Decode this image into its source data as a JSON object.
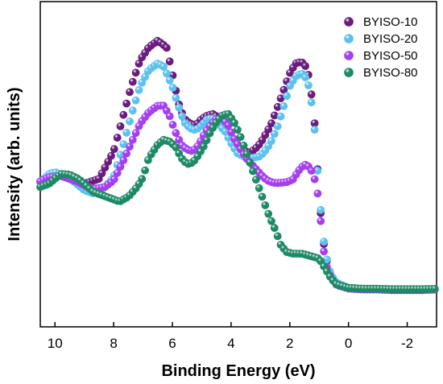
{
  "chart_data": {
    "type": "scatter",
    "xlabel": "Binding Energy (eV)",
    "ylabel": "Intensity (arb. units)",
    "xlim": [
      10.5,
      -3.0
    ],
    "ylim": [
      0,
      1.0
    ],
    "x_reversed": true,
    "y_ticks_shown": false,
    "grid": false,
    "legend_position": "top-right",
    "x_ticks": [
      10,
      8,
      6,
      4,
      2,
      0,
      -2
    ],
    "x_tick_labels": [
      "10",
      "8",
      "6",
      "4",
      "2",
      "0",
      "-2"
    ],
    "series": [
      {
        "name": "BYISO-10",
        "color": "#6a1b7e",
        "points": [
          [
            10.5,
            0.447
          ],
          [
            10.0,
            0.47
          ],
          [
            9.5,
            0.455
          ],
          [
            9.0,
            0.44
          ],
          [
            8.5,
            0.455
          ],
          [
            8.0,
            0.54
          ],
          [
            7.7,
            0.64
          ],
          [
            7.4,
            0.74
          ],
          [
            7.1,
            0.82
          ],
          [
            6.8,
            0.86
          ],
          [
            6.5,
            0.88
          ],
          [
            6.2,
            0.86
          ],
          [
            6.0,
            0.78
          ],
          [
            5.8,
            0.69
          ],
          [
            5.6,
            0.64
          ],
          [
            5.4,
            0.625
          ],
          [
            5.2,
            0.62
          ],
          [
            5.0,
            0.64
          ],
          [
            4.8,
            0.65
          ],
          [
            4.6,
            0.655
          ],
          [
            4.4,
            0.64
          ],
          [
            4.2,
            0.62
          ],
          [
            4.0,
            0.58
          ],
          [
            3.8,
            0.555
          ],
          [
            3.6,
            0.545
          ],
          [
            3.4,
            0.535
          ],
          [
            3.2,
            0.545
          ],
          [
            3.0,
            0.565
          ],
          [
            2.8,
            0.595
          ],
          [
            2.6,
            0.63
          ],
          [
            2.4,
            0.68
          ],
          [
            2.2,
            0.73
          ],
          [
            2.0,
            0.78
          ],
          [
            1.8,
            0.81
          ],
          [
            1.6,
            0.815
          ],
          [
            1.4,
            0.795
          ],
          [
            1.2,
            0.68
          ],
          [
            1.1,
            0.56
          ],
          [
            1.0,
            0.41
          ],
          [
            0.9,
            0.3
          ],
          [
            0.8,
            0.225
          ],
          [
            0.6,
            0.155
          ],
          [
            0.4,
            0.135
          ],
          [
            0.0,
            0.118
          ],
          [
            -0.5,
            0.115
          ],
          [
            -1.0,
            0.115
          ],
          [
            -1.5,
            0.113
          ],
          [
            -2.0,
            0.113
          ],
          [
            -2.5,
            0.113
          ],
          [
            -3.0,
            0.115
          ]
        ]
      },
      {
        "name": "BYISO-20",
        "color": "#5bc2ef",
        "points": [
          [
            10.5,
            0.445
          ],
          [
            10.2,
            0.47
          ],
          [
            10.0,
            0.476
          ],
          [
            9.7,
            0.465
          ],
          [
            9.4,
            0.45
          ],
          [
            9.0,
            0.42
          ],
          [
            8.7,
            0.41
          ],
          [
            8.4,
            0.42
          ],
          [
            8.0,
            0.46
          ],
          [
            7.7,
            0.55
          ],
          [
            7.4,
            0.65
          ],
          [
            7.1,
            0.74
          ],
          [
            6.8,
            0.79
          ],
          [
            6.5,
            0.81
          ],
          [
            6.3,
            0.8
          ],
          [
            6.0,
            0.74
          ],
          [
            5.8,
            0.68
          ],
          [
            5.6,
            0.63
          ],
          [
            5.4,
            0.61
          ],
          [
            5.2,
            0.605
          ],
          [
            5.0,
            0.62
          ],
          [
            4.8,
            0.64
          ],
          [
            4.6,
            0.64
          ],
          [
            4.4,
            0.62
          ],
          [
            4.2,
            0.6
          ],
          [
            4.0,
            0.565
          ],
          [
            3.8,
            0.535
          ],
          [
            3.6,
            0.525
          ],
          [
            3.4,
            0.52
          ],
          [
            3.2,
            0.52
          ],
          [
            3.0,
            0.525
          ],
          [
            2.8,
            0.545
          ],
          [
            2.6,
            0.575
          ],
          [
            2.4,
            0.62
          ],
          [
            2.2,
            0.68
          ],
          [
            2.0,
            0.74
          ],
          [
            1.8,
            0.77
          ],
          [
            1.6,
            0.78
          ],
          [
            1.4,
            0.76
          ],
          [
            1.2,
            0.66
          ],
          [
            1.1,
            0.54
          ],
          [
            1.0,
            0.42
          ],
          [
            0.9,
            0.31
          ],
          [
            0.8,
            0.23
          ],
          [
            0.6,
            0.16
          ],
          [
            0.4,
            0.135
          ],
          [
            0.0,
            0.12
          ],
          [
            -0.5,
            0.117
          ],
          [
            -1.0,
            0.117
          ],
          [
            -1.5,
            0.115
          ],
          [
            -2.0,
            0.115
          ],
          [
            -2.5,
            0.115
          ],
          [
            -3.0,
            0.116
          ]
        ]
      },
      {
        "name": "BYISO-50",
        "color": "#a53ef0",
        "points": [
          [
            10.5,
            0.447
          ],
          [
            10.2,
            0.46
          ],
          [
            9.8,
            0.465
          ],
          [
            9.5,
            0.455
          ],
          [
            9.2,
            0.445
          ],
          [
            8.9,
            0.43
          ],
          [
            8.6,
            0.425
          ],
          [
            8.3,
            0.43
          ],
          [
            8.0,
            0.45
          ],
          [
            7.7,
            0.505
          ],
          [
            7.4,
            0.565
          ],
          [
            7.1,
            0.625
          ],
          [
            6.8,
            0.66
          ],
          [
            6.5,
            0.68
          ],
          [
            6.3,
            0.68
          ],
          [
            6.1,
            0.65
          ],
          [
            5.9,
            0.6
          ],
          [
            5.7,
            0.56
          ],
          [
            5.5,
            0.545
          ],
          [
            5.3,
            0.54
          ],
          [
            5.1,
            0.56
          ],
          [
            4.9,
            0.595
          ],
          [
            4.7,
            0.62
          ],
          [
            4.5,
            0.64
          ],
          [
            4.3,
            0.64
          ],
          [
            4.1,
            0.62
          ],
          [
            3.9,
            0.58
          ],
          [
            3.7,
            0.55
          ],
          [
            3.5,
            0.52
          ],
          [
            3.3,
            0.5
          ],
          [
            3.1,
            0.48
          ],
          [
            2.9,
            0.46
          ],
          [
            2.7,
            0.447
          ],
          [
            2.5,
            0.442
          ],
          [
            2.3,
            0.443
          ],
          [
            2.1,
            0.445
          ],
          [
            1.9,
            0.452
          ],
          [
            1.7,
            0.48
          ],
          [
            1.5,
            0.5
          ],
          [
            1.3,
            0.49
          ],
          [
            1.1,
            0.44
          ],
          [
            1.0,
            0.38
          ],
          [
            0.9,
            0.28
          ],
          [
            0.8,
            0.2
          ],
          [
            0.6,
            0.15
          ],
          [
            0.4,
            0.128
          ],
          [
            0.0,
            0.118
          ],
          [
            -0.5,
            0.115
          ],
          [
            -1.0,
            0.115
          ],
          [
            -1.5,
            0.114
          ],
          [
            -2.0,
            0.114
          ],
          [
            -2.5,
            0.114
          ],
          [
            -3.0,
            0.115
          ]
        ]
      },
      {
        "name": "BYISO-80",
        "color": "#1d8a64",
        "points": [
          [
            10.5,
            0.43
          ],
          [
            10.2,
            0.44
          ],
          [
            10.0,
            0.455
          ],
          [
            9.8,
            0.47
          ],
          [
            9.5,
            0.468
          ],
          [
            9.2,
            0.455
          ],
          [
            9.0,
            0.44
          ],
          [
            8.7,
            0.415
          ],
          [
            8.4,
            0.405
          ],
          [
            8.1,
            0.395
          ],
          [
            7.8,
            0.385
          ],
          [
            7.5,
            0.4
          ],
          [
            7.2,
            0.43
          ],
          [
            7.0,
            0.46
          ],
          [
            6.8,
            0.52
          ],
          [
            6.5,
            0.56
          ],
          [
            6.3,
            0.575
          ],
          [
            6.1,
            0.57
          ],
          [
            5.9,
            0.555
          ],
          [
            5.7,
            0.52
          ],
          [
            5.5,
            0.5
          ],
          [
            5.3,
            0.505
          ],
          [
            5.1,
            0.53
          ],
          [
            4.9,
            0.56
          ],
          [
            4.7,
            0.6
          ],
          [
            4.5,
            0.63
          ],
          [
            4.3,
            0.65
          ],
          [
            4.1,
            0.655
          ],
          [
            3.9,
            0.63
          ],
          [
            3.7,
            0.59
          ],
          [
            3.5,
            0.54
          ],
          [
            3.3,
            0.49
          ],
          [
            3.1,
            0.44
          ],
          [
            2.9,
            0.39
          ],
          [
            2.7,
            0.34
          ],
          [
            2.5,
            0.3
          ],
          [
            2.3,
            0.25
          ],
          [
            2.1,
            0.23
          ],
          [
            1.9,
            0.225
          ],
          [
            1.6,
            0.225
          ],
          [
            1.3,
            0.218
          ],
          [
            1.0,
            0.21
          ],
          [
            0.8,
            0.18
          ],
          [
            0.6,
            0.15
          ],
          [
            0.4,
            0.13
          ],
          [
            0.0,
            0.12
          ],
          [
            -0.5,
            0.117
          ],
          [
            -1.0,
            0.117
          ],
          [
            -1.5,
            0.116
          ],
          [
            -2.0,
            0.116
          ],
          [
            -2.5,
            0.116
          ],
          [
            -3.0,
            0.117
          ]
        ]
      }
    ]
  }
}
